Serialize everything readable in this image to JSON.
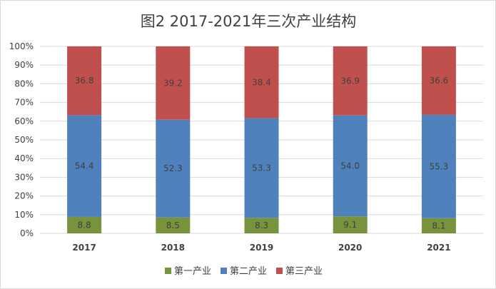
{
  "chart_data": {
    "type": "bar",
    "stacked": true,
    "title": "图2  2017-2021年三次产业结构",
    "xlabel": "",
    "ylabel": "",
    "categories": [
      "2017",
      "2018",
      "2019",
      "2020",
      "2021"
    ],
    "y_ticks": [
      "0%",
      "10%",
      "20%",
      "30%",
      "40%",
      "50%",
      "60%",
      "70%",
      "80%",
      "90%",
      "100%"
    ],
    "ylim": [
      0,
      100
    ],
    "grid": true,
    "legend_position": "bottom",
    "series": [
      {
        "name": "第一产业",
        "color": "#77933c",
        "values": [
          8.8,
          8.5,
          8.3,
          9.1,
          8.1
        ],
        "labels": [
          "8.8",
          "8.5",
          "8.3",
          "9.1",
          "8.1"
        ]
      },
      {
        "name": "第二产业",
        "color": "#4f81bd",
        "values": [
          54.4,
          52.3,
          53.3,
          54.0,
          55.3
        ],
        "labels": [
          "54.4",
          "52.3",
          "53.3",
          "54.0",
          "55.3"
        ]
      },
      {
        "name": "第三产业",
        "color": "#c0504d",
        "values": [
          36.8,
          39.2,
          38.4,
          36.9,
          36.6
        ],
        "labels": [
          "36.8",
          "39.2",
          "38.4",
          "36.9",
          "36.6"
        ]
      }
    ]
  }
}
